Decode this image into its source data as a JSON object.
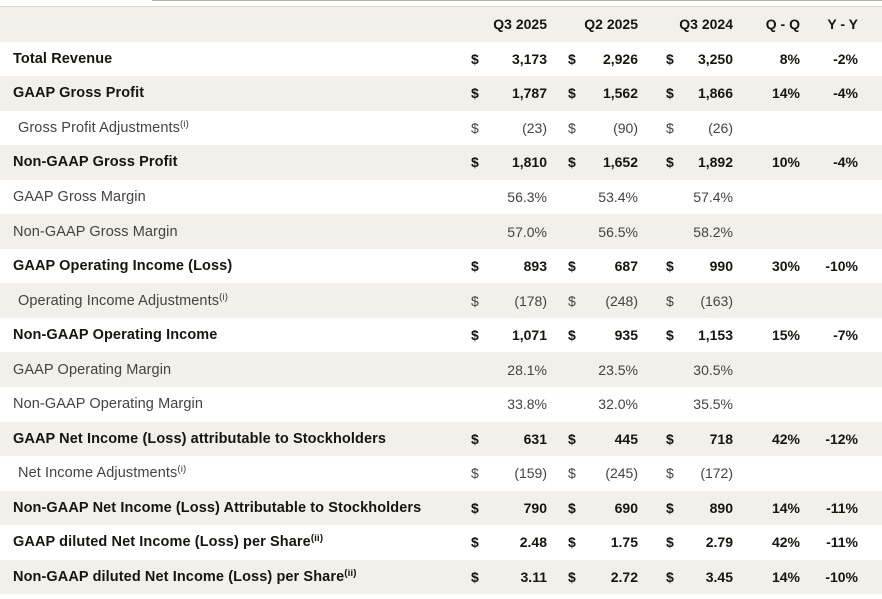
{
  "page": {
    "background": "#ffffff",
    "stripe_color": "#f3f0e9",
    "primary_text_color": "#17150f",
    "secondary_text_color": "#45433f"
  },
  "table": {
    "columns": [
      "Q3 2025",
      "Q2 2025",
      "Q3 2024",
      "Q - Q",
      "Y - Y"
    ],
    "rows": [
      {
        "label": "Total Revenue",
        "sup": "",
        "bold": true,
        "indent": false,
        "cur": "$",
        "v1": "3,173",
        "v2": "2,926",
        "v3": "3,250",
        "qq": "8%",
        "yy": "-2%"
      },
      {
        "label": "GAAP Gross Profit",
        "sup": "",
        "bold": true,
        "indent": false,
        "cur": "$",
        "v1": "1,787",
        "v2": "1,562",
        "v3": "1,866",
        "qq": "14%",
        "yy": "-4%"
      },
      {
        "label": "Gross Profit Adjustments",
        "sup": "(i)",
        "bold": false,
        "indent": true,
        "cur": "$",
        "v1": "(23)",
        "v2": "(90)",
        "v3": "(26)",
        "qq": "",
        "yy": ""
      },
      {
        "label": "Non-GAAP Gross Profit",
        "sup": "",
        "bold": true,
        "indent": false,
        "cur": "$",
        "v1": "1,810",
        "v2": "1,652",
        "v3": "1,892",
        "qq": "10%",
        "yy": "-4%"
      },
      {
        "label": "GAAP Gross Margin",
        "sup": "",
        "bold": false,
        "indent": false,
        "cur": "",
        "v1": "56.3%",
        "v2": "53.4%",
        "v3": "57.4%",
        "qq": "",
        "yy": ""
      },
      {
        "label": "Non-GAAP Gross Margin",
        "sup": "",
        "bold": false,
        "indent": false,
        "cur": "",
        "v1": "57.0%",
        "v2": "56.5%",
        "v3": "58.2%",
        "qq": "",
        "yy": ""
      },
      {
        "label": "GAAP Operating Income (Loss)",
        "sup": "",
        "bold": true,
        "indent": false,
        "cur": "$",
        "v1": "893",
        "v2": "687",
        "v3": "990",
        "qq": "30%",
        "yy": "-10%"
      },
      {
        "label": "Operating Income Adjustments",
        "sup": "(i)",
        "bold": false,
        "indent": true,
        "cur": "$",
        "v1": "(178)",
        "v2": "(248)",
        "v3": "(163)",
        "qq": "",
        "yy": ""
      },
      {
        "label": "Non-GAAP Operating Income",
        "sup": "",
        "bold": true,
        "indent": false,
        "cur": "$",
        "v1": "1,071",
        "v2": "935",
        "v3": "1,153",
        "qq": "15%",
        "yy": "-7%"
      },
      {
        "label": "GAAP Operating Margin",
        "sup": "",
        "bold": false,
        "indent": false,
        "cur": "",
        "v1": "28.1%",
        "v2": "23.5%",
        "v3": "30.5%",
        "qq": "",
        "yy": ""
      },
      {
        "label": "Non-GAAP Operating Margin",
        "sup": "",
        "bold": false,
        "indent": false,
        "cur": "",
        "v1": "33.8%",
        "v2": "32.0%",
        "v3": "35.5%",
        "qq": "",
        "yy": ""
      },
      {
        "label": "GAAP Net Income (Loss) attributable to Stockholders",
        "sup": "",
        "bold": true,
        "indent": false,
        "cur": "$",
        "v1": "631",
        "v2": "445",
        "v3": "718",
        "qq": "42%",
        "yy": "-12%"
      },
      {
        "label": "Net Income Adjustments",
        "sup": "(i)",
        "bold": false,
        "indent": true,
        "cur": "$",
        "v1": "(159)",
        "v2": "(245)",
        "v3": "(172)",
        "qq": "",
        "yy": ""
      },
      {
        "label": "Non-GAAP Net Income (Loss) Attributable to Stockholders",
        "sup": "",
        "bold": true,
        "indent": false,
        "cur": "$",
        "v1": "790",
        "v2": "690",
        "v3": "890",
        "qq": "14%",
        "yy": "-11%"
      },
      {
        "label": "GAAP diluted Net Income (Loss) per Share",
        "sup": "(ii)",
        "bold": true,
        "indent": false,
        "cur": "$",
        "v1": "2.48",
        "v2": "1.75",
        "v3": "2.79",
        "qq": "42%",
        "yy": "-11%"
      },
      {
        "label": "Non-GAAP diluted Net Income (Loss) per Share",
        "sup": "(ii)",
        "bold": true,
        "indent": false,
        "cur": "$",
        "v1": "3.11",
        "v2": "2.72",
        "v3": "3.45",
        "qq": "14%",
        "yy": "-10%"
      }
    ]
  }
}
